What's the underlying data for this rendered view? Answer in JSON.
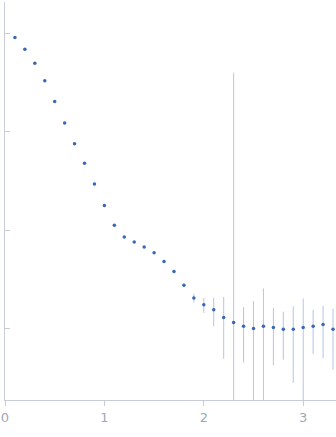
{
  "chart_data": {
    "type": "scatter",
    "x": [
      0.1,
      0.2,
      0.3,
      0.4,
      0.5,
      0.6,
      0.7,
      0.8,
      0.9,
      1.0,
      1.1,
      1.2,
      1.3,
      1.4,
      1.5,
      1.6,
      1.7,
      1.8,
      1.9,
      2.0,
      2.1,
      2.2,
      2.3,
      2.4,
      2.5,
      2.6,
      2.7,
      2.8,
      2.9,
      3.0,
      3.1,
      3.2,
      3.3
    ],
    "values": [
      0.912,
      0.692,
      0.501,
      0.331,
      0.204,
      0.123,
      0.0759,
      0.0479,
      0.0295,
      0.0178,
      0.0112,
      0.00851,
      0.00759,
      0.00676,
      0.00589,
      0.00479,
      0.0038,
      0.00275,
      0.00204,
      0.00174,
      0.00155,
      0.00129,
      0.00115,
      0.00105,
      0.001,
      0.00105,
      0.00102,
      0.00098,
      0.00098,
      0.00102,
      0.00105,
      0.0011,
      0.00098
    ],
    "errors": [
      0.005,
      0.004,
      0.003,
      0.002,
      0.0012,
      0.0008,
      0.0005,
      0.0003,
      0.0002,
      0.00012,
      8e-05,
      6e-05,
      5e-05,
      5e-05,
      5e-05,
      5e-05,
      5e-05,
      0.0001,
      0.0002,
      0.0003,
      0.0005,
      0.0008,
      0.4,
      0.0006,
      0.0009,
      0.0015,
      0.0006,
      0.0005,
      0.0007,
      0.001,
      0.0005,
      0.0006,
      0.0006
    ],
    "color": "#3a66b5",
    "marker": "circle",
    "xlim": [
      0,
      3.33
    ],
    "ylim": [
      0.000187,
      2.1
    ],
    "xticks": [
      0,
      1,
      2,
      3
    ],
    "yticks": [
      0.001,
      0.01,
      0.1,
      1
    ],
    "log": "y",
    "tick_labels": "x",
    "grid": false
  }
}
